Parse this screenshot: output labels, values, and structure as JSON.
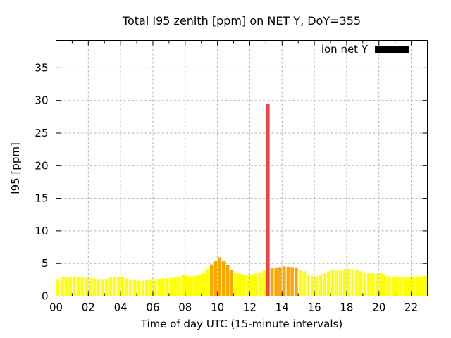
{
  "title": "Total I95 zenith [ppm] on NET Y, DoY=355",
  "legend": {
    "label": "ion net Y",
    "swatch_color": "#000000"
  },
  "chart_data": {
    "type": "bar",
    "title": "Total I95 zenith [ppm] on NET Y, DoY=355",
    "xlabel": "Time of day UTC (15-minute intervals)",
    "ylabel": "I95 [ppm]",
    "legend_label": "ion net Y",
    "legend_position": "top-right-inside",
    "grid": true,
    "ylim": [
      0,
      39.2
    ],
    "xlim_hours": [
      0,
      23
    ],
    "interval_minutes": 15,
    "start_time": "00:00",
    "y_ticks": [
      0,
      5,
      10,
      15,
      20,
      25,
      30,
      35
    ],
    "x_ticks": [
      {
        "hour": 0,
        "label": "00"
      },
      {
        "hour": 2,
        "label": "02"
      },
      {
        "hour": 4,
        "label": "04"
      },
      {
        "hour": 6,
        "label": "06"
      },
      {
        "hour": 8,
        "label": "08"
      },
      {
        "hour": 10,
        "label": "10"
      },
      {
        "hour": 12,
        "label": "12"
      },
      {
        "hour": 14,
        "label": "14"
      },
      {
        "hour": 16,
        "label": "16"
      },
      {
        "hour": 18,
        "label": "18"
      },
      {
        "hour": 20,
        "label": "20"
      },
      {
        "hour": 22,
        "label": "22"
      }
    ],
    "palette": {
      "y": "#ffff00",
      "o": "#ffa500",
      "r": "#ee4444"
    },
    "grid_color": "#b0b0b0",
    "series": [
      {
        "name": "ion net Y",
        "values": [
          2.6,
          2.9,
          2.9,
          2.85,
          2.95,
          2.9,
          2.85,
          2.8,
          2.75,
          2.7,
          2.65,
          2.6,
          2.65,
          2.85,
          2.95,
          2.9,
          2.85,
          2.7,
          2.6,
          2.45,
          2.35,
          2.4,
          2.55,
          2.6,
          2.6,
          2.65,
          2.7,
          2.75,
          2.8,
          2.9,
          3.0,
          3.2,
          3.1,
          3.05,
          3.1,
          3.3,
          3.6,
          4.2,
          4.85,
          5.4,
          5.95,
          5.4,
          4.8,
          4.05,
          3.6,
          3.45,
          3.3,
          3.2,
          3.3,
          3.45,
          3.6,
          3.9,
          29.5,
          4.3,
          4.35,
          4.45,
          4.55,
          4.5,
          4.45,
          4.4,
          4.05,
          3.8,
          3.25,
          3.1,
          3.05,
          3.2,
          3.45,
          3.8,
          3.95,
          4.0,
          4.05,
          4.1,
          4.15,
          4.1,
          3.95,
          3.8,
          3.6,
          3.5,
          3.45,
          3.45,
          3.5,
          3.15,
          3.05,
          3.0,
          2.95,
          2.9,
          2.95,
          2.95,
          3.0,
          3.0,
          3.05,
          3.1
        ],
        "colors": [
          "y",
          "y",
          "y",
          "y",
          "y",
          "y",
          "y",
          "y",
          "y",
          "y",
          "y",
          "y",
          "y",
          "y",
          "y",
          "y",
          "y",
          "y",
          "y",
          "y",
          "y",
          "y",
          "y",
          "y",
          "y",
          "y",
          "y",
          "y",
          "y",
          "y",
          "y",
          "y",
          "y",
          "y",
          "y",
          "y",
          "y",
          "y",
          "o",
          "o",
          "o",
          "o",
          "o",
          "o",
          "y",
          "y",
          "y",
          "y",
          "y",
          "y",
          "y",
          "y",
          "r",
          "o",
          "o",
          "o",
          "o",
          "o",
          "o",
          "o",
          "y",
          "y",
          "y",
          "y",
          "y",
          "y",
          "y",
          "y",
          "y",
          "y",
          "y",
          "y",
          "y",
          "y",
          "y",
          "y",
          "y",
          "y",
          "y",
          "y",
          "y",
          "y",
          "y",
          "y",
          "y",
          "y",
          "y",
          "y",
          "y",
          "y",
          "y",
          "y"
        ]
      }
    ]
  }
}
